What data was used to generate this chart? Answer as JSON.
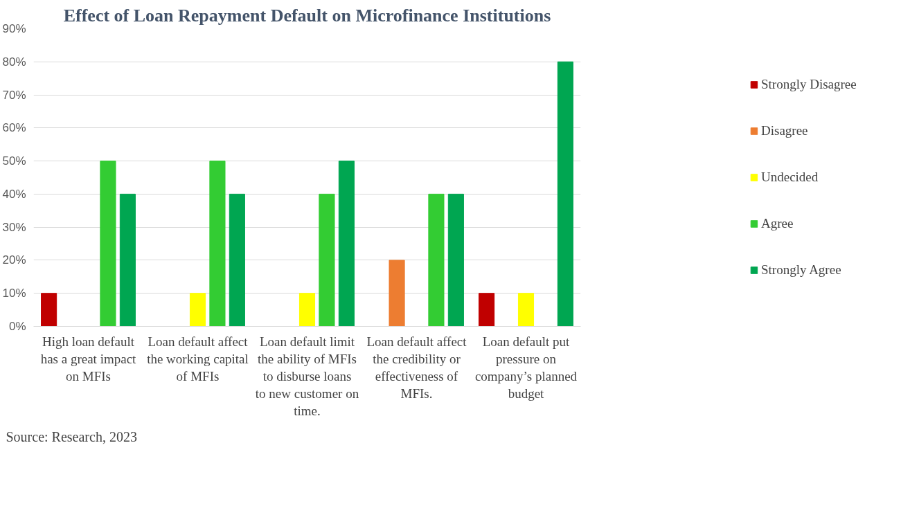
{
  "chart_data": {
    "type": "bar",
    "title": "Effect of Loan Repayment Default on Microfinance Institutions",
    "categories": [
      "High loan default has a great impact on MFIs",
      "Loan default affect the working capital of MFIs",
      "Loan default limit the ability of MFIs to disburse loans to new customer on time.",
      "Loan default affect the credibility or effectiveness of MFIs.",
      "Loan default put pressure on company’s planned budget"
    ],
    "series": [
      {
        "name": "Strongly Disagree",
        "color": "#c00000",
        "values": [
          10,
          0,
          0,
          0,
          10
        ]
      },
      {
        "name": "Disagree",
        "color": "#ed7d31",
        "values": [
          0,
          0,
          0,
          20,
          0
        ]
      },
      {
        "name": "Undecided",
        "color": "#ffff00",
        "values": [
          0,
          10,
          10,
          0,
          10
        ]
      },
      {
        "name": "Agree",
        "color": "#33cc33",
        "values": [
          50,
          50,
          40,
          40,
          0
        ]
      },
      {
        "name": "Strongly Agree",
        "color": "#00a651",
        "values": [
          40,
          40,
          50,
          40,
          80
        ]
      }
    ],
    "ylim": [
      0,
      90
    ],
    "yticks": [
      {
        "value": 0,
        "label": "0%"
      },
      {
        "value": 10,
        "label": "10%"
      },
      {
        "value": 20,
        "label": "20%"
      },
      {
        "value": 30,
        "label": "30%"
      },
      {
        "value": 40,
        "label": "40%"
      },
      {
        "value": 50,
        "label": "50%"
      },
      {
        "value": 60,
        "label": "60%"
      },
      {
        "value": 70,
        "label": "70%"
      },
      {
        "value": 80,
        "label": "80%"
      },
      {
        "value": 90,
        "label": "90%"
      }
    ],
    "grid": "y",
    "legend": "right",
    "annotations": [
      "Source: Research, 2023"
    ]
  }
}
